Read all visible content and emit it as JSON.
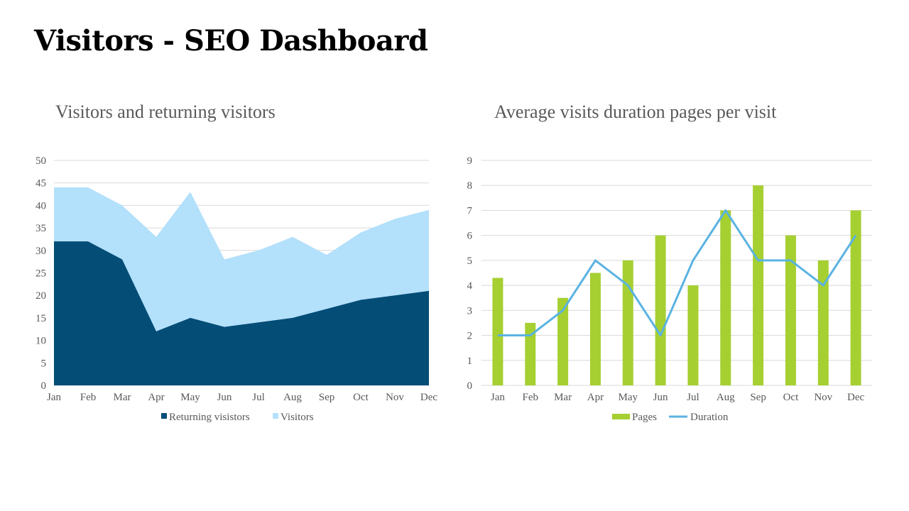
{
  "page": {
    "title": "Visitors - SEO Dashboard"
  },
  "colors": {
    "returning": "#034d76",
    "visitors": "#b3e0fb",
    "pages": "#a6cf31",
    "duration": "#5ab3e2",
    "grid": "#d9d9d9",
    "text": "#595959"
  },
  "chart_data": [
    {
      "type": "area",
      "title": "Visitors and returning visitors",
      "stacked": false,
      "categories": [
        "Jan",
        "Feb",
        "Mar",
        "Apr",
        "May",
        "Jun",
        "Jul",
        "Aug",
        "Sep",
        "Oct",
        "Nov",
        "Dec"
      ],
      "ylim": [
        0,
        50
      ],
      "yticks": [
        0,
        5,
        10,
        15,
        20,
        25,
        30,
        35,
        40,
        45,
        50
      ],
      "grid": true,
      "legend": "bottom",
      "series": [
        {
          "name": "Returning visistors",
          "color": "#034d76",
          "values": [
            32,
            32,
            28,
            12,
            15,
            13,
            14,
            15,
            17,
            19,
            20,
            21
          ]
        },
        {
          "name": "Visitors",
          "color": "#b3e0fb",
          "values": [
            44,
            44,
            40,
            33,
            43,
            28,
            30,
            33,
            29,
            34,
            37,
            39
          ]
        }
      ]
    },
    {
      "type": "bar",
      "title": "Average visits duration pages per visit",
      "categories": [
        "Jan",
        "Feb",
        "Mar",
        "Apr",
        "May",
        "Jun",
        "Jul",
        "Aug",
        "Sep",
        "Oct",
        "Nov",
        "Dec"
      ],
      "ylim": [
        0,
        9
      ],
      "yticks": [
        0,
        1,
        2,
        3,
        4,
        5,
        6,
        7,
        8,
        9
      ],
      "grid": true,
      "legend": "bottom",
      "series": [
        {
          "name": "Pages",
          "type": "bar",
          "color": "#a6cf31",
          "values": [
            4.3,
            2.5,
            3.5,
            4.5,
            5,
            6,
            4,
            7,
            8,
            6,
            5,
            7
          ]
        },
        {
          "name": "Duration",
          "type": "line",
          "color": "#5ab3e2",
          "values": [
            2,
            2,
            3,
            5,
            4,
            2,
            5,
            7,
            5,
            5,
            4,
            6
          ]
        }
      ]
    }
  ]
}
